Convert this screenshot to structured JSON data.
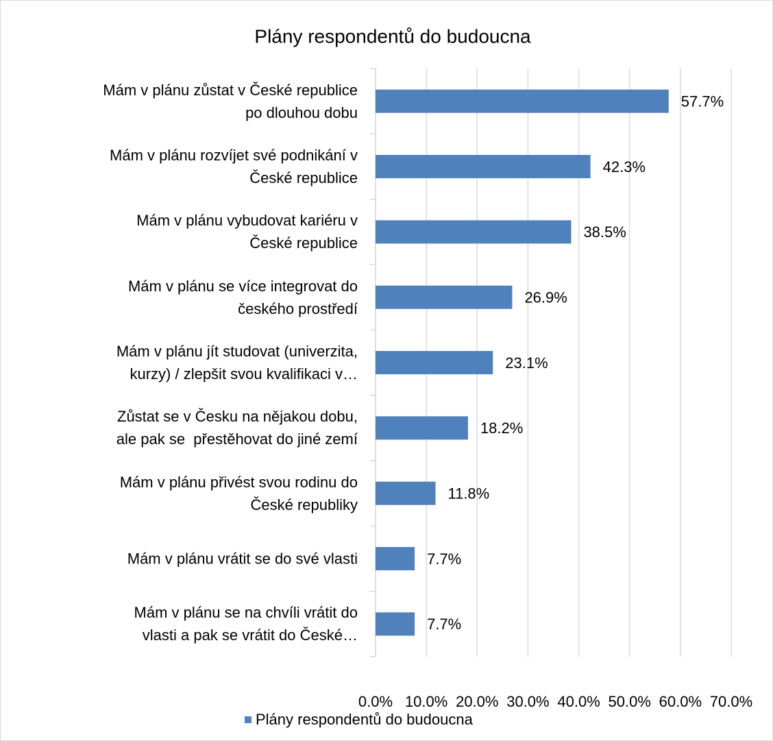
{
  "chart_data": {
    "type": "barh",
    "title": "Plány respondentů do budoucna",
    "categories": [
      "Mám v plánu zůstat v České republice\npo dlouhou dobu",
      "Mám v plánu rozvíjet své podnikání v\nČeské republice",
      "Mám v plánu vybudovat kariéru v\nČeské republice",
      "Mám v plánu se více integrovat do\nčeského prostředí",
      "Mám v plánu jít studovat (univerzita,\nkurzy) / zlepšit svou kvalifikaci v…",
      "Zůstat se v Česku na nějakou dobu,\nale pak se  přestěhovat do jiné zemí",
      "Mám v plánu přivést svou rodinu do\nČeské republiky",
      "Mám v plánu vrátit se do své vlasti",
      "Mám v plánu se na chvíli vrátit do\nvlasti a pak se vrátit do České…"
    ],
    "series": [
      {
        "name": "Plány respondentů do budoucna",
        "color": "#4f81bd",
        "values": [
          57.7,
          42.3,
          38.5,
          26.9,
          23.1,
          18.2,
          11.8,
          7.7,
          7.7
        ],
        "value_labels": [
          "57.7%",
          "42.3%",
          "38.5%",
          "26.9%",
          "23.1%",
          "18.2%",
          "11.8%",
          "7.7%",
          "7.7%"
        ]
      }
    ],
    "xlim": [
      0,
      70
    ],
    "xticks": [
      {
        "value": 0,
        "label": "0.0%"
      },
      {
        "value": 10,
        "label": "10.0%"
      },
      {
        "value": 20,
        "label": "20.0%"
      },
      {
        "value": 30,
        "label": "30.0%"
      },
      {
        "value": 40,
        "label": "40.0%"
      },
      {
        "value": 50,
        "label": "50.0%"
      },
      {
        "value": 60,
        "label": "60.0%"
      },
      {
        "value": 70,
        "label": "70.0%"
      }
    ],
    "grid": true,
    "legend": "bottom"
  }
}
